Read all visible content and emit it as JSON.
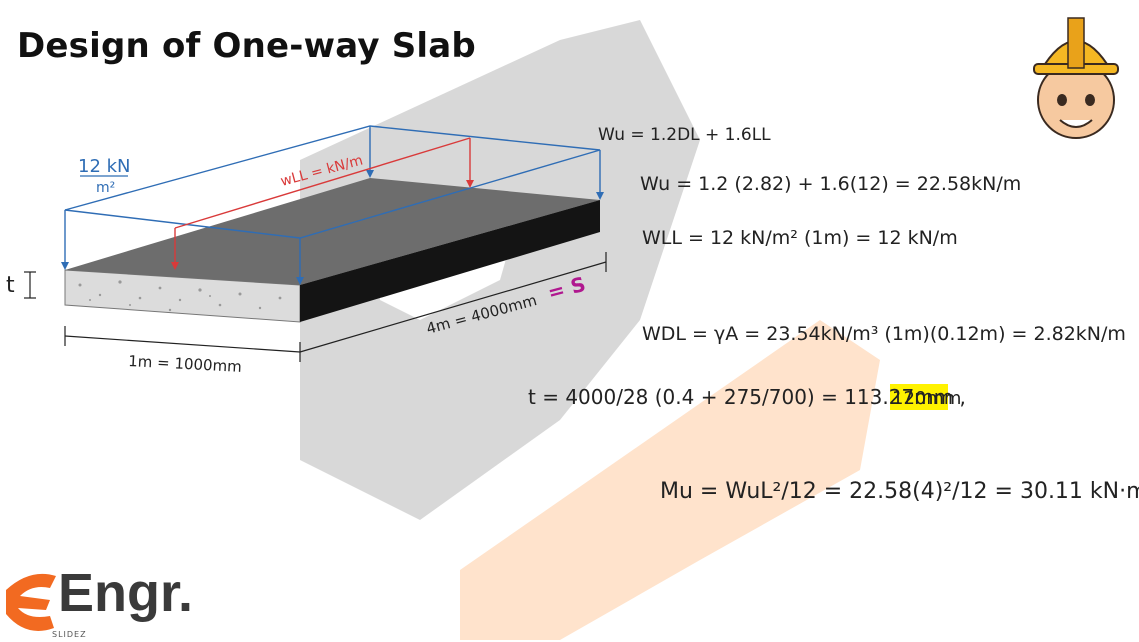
{
  "title": "Design of One-way Slab",
  "diagram": {
    "load_total": "12 kN/m²",
    "load_total_num": "12 kN",
    "load_total_den": "m²",
    "load_live": "wLL = kN/m",
    "thickness_label": "t",
    "width_label": "1m = 1000mm",
    "length_label": "4m = 4000mm",
    "span_symbol": "= S"
  },
  "equations": {
    "wu_def": "Wu = 1.2DL + 1.6LL",
    "wu_calc": "Wu = 1.2 (2.82) + 1.6(12) = 22.58kN/m",
    "wll": "WLL = 12 kN/m² (1m) = 12 kN/m",
    "wdl": "WDL = γA = 23.54kN/m³ (1m)(0.12m) = 2.82kN/m",
    "t_calc": "t = 4000/28 (0.4 + 275/700) = 113.27mm ,",
    "t_final": "120mm",
    "mu_calc": "Mu = WuL²/12 = 22.58(4)²/12 = 30.11 kN·m"
  },
  "logo": {
    "main": "Engr.",
    "sub": "SLIDEZ"
  },
  "avatar": "engineer-hardhat-avatar",
  "colors": {
    "blue": "#2f6db5",
    "red": "#d93a3a",
    "highlight": "#fff200",
    "magenta": "#b0188f",
    "watermark_gray": "#cfcfcf",
    "watermark_orange": "#ffd9b8"
  }
}
